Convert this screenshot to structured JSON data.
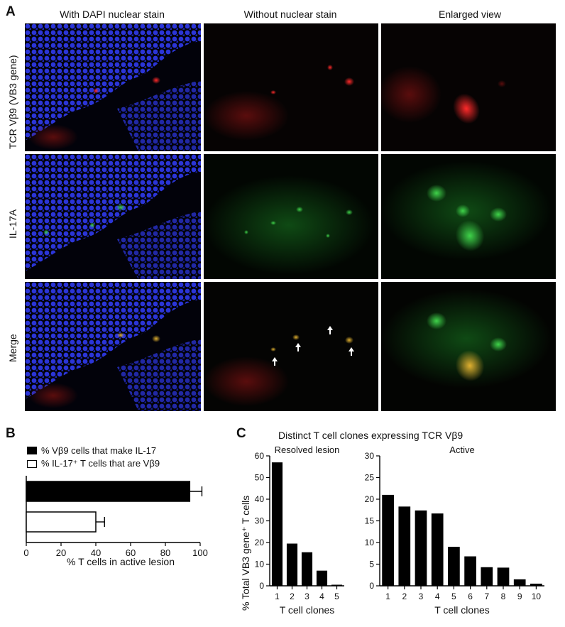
{
  "panelA": {
    "letter": "A",
    "columns": [
      "With DAPI nuclear stain",
      "Without nuclear stain",
      "Enlarged view"
    ],
    "rows": [
      "TCR Vβ9 (VB3 gene)",
      "IL-17A",
      "Merge"
    ]
  },
  "panelB": {
    "letter": "B",
    "chart_data": {
      "type": "bar",
      "orientation": "horizontal",
      "series": [
        {
          "name": "% Vβ9 cells that make IL-17",
          "value": 94,
          "error": 7,
          "fill": "#000000"
        },
        {
          "name": "% IL-17⁺ T cells that are Vβ9",
          "value": 40,
          "error": 5,
          "fill": "#ffffff"
        }
      ],
      "xlabel": "% T cells in active lesion",
      "xlim": [
        0,
        100
      ],
      "xticks": [
        0,
        20,
        40,
        60,
        80,
        100
      ]
    }
  },
  "panelC": {
    "letter": "C",
    "title": "Distinct T cell clones expressing TCR Vβ9",
    "ylabel": "% Total VB3 gene⁺ T cells",
    "chart_data": [
      {
        "type": "bar",
        "title": "Resolved lesion",
        "categories": [
          "1",
          "2",
          "3",
          "4",
          "5"
        ],
        "values": [
          57,
          19.5,
          15.5,
          7,
          0.5
        ],
        "xlabel": "T cell clones",
        "ylim": [
          0,
          60
        ],
        "yticks": [
          0,
          10,
          20,
          30,
          40,
          50,
          60
        ]
      },
      {
        "type": "bar",
        "title": "Active",
        "categories": [
          "1",
          "2",
          "3",
          "4",
          "5",
          "6",
          "7",
          "8",
          "9",
          "10"
        ],
        "values": [
          21,
          18.3,
          17.4,
          16.7,
          9,
          6.8,
          4.3,
          4.2,
          1.5,
          0.5
        ],
        "xlabel": "T cell clones",
        "ylim": [
          0,
          30
        ],
        "yticks": [
          0,
          5,
          10,
          15,
          20,
          25,
          30
        ]
      }
    ]
  }
}
